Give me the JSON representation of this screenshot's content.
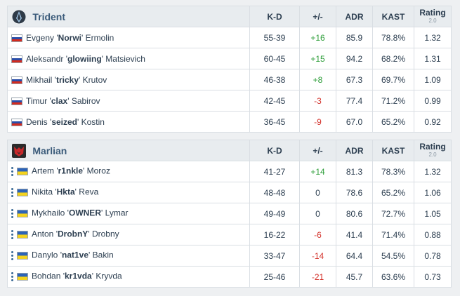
{
  "headers": {
    "kd": "K-D",
    "pm": "+/-",
    "adr": "ADR",
    "kast": "KAST",
    "rating": "Rating",
    "rating_ver": "2.0"
  },
  "teams": [
    {
      "name": "Trident",
      "logo": "trident-logo",
      "players": [
        {
          "flag": "russia",
          "first": "Evgeny '",
          "nick": "Norwi",
          "last": "' Ermolin",
          "kd": "55-39",
          "pm": "+16",
          "adr": "85.9",
          "kast": "78.8%",
          "rating": "1.32"
        },
        {
          "flag": "russia",
          "first": "Aleksandr '",
          "nick": "glowiing",
          "last": "' Matsievich",
          "kd": "60-45",
          "pm": "+15",
          "adr": "94.2",
          "kast": "68.2%",
          "rating": "1.31"
        },
        {
          "flag": "russia",
          "first": "Mikhail '",
          "nick": "tricky",
          "last": "' Krutov",
          "kd": "46-38",
          "pm": "+8",
          "adr": "67.3",
          "kast": "69.7%",
          "rating": "1.09"
        },
        {
          "flag": "russia",
          "first": "Timur '",
          "nick": "clax",
          "last": "' Sabirov",
          "kd": "42-45",
          "pm": "-3",
          "adr": "77.4",
          "kast": "71.2%",
          "rating": "0.99"
        },
        {
          "flag": "russia",
          "first": "Denis '",
          "nick": "seized",
          "last": "' Kostin",
          "kd": "36-45",
          "pm": "-9",
          "adr": "67.0",
          "kast": "65.2%",
          "rating": "0.92"
        }
      ]
    },
    {
      "name": "Marlian",
      "logo": "marlian-logo",
      "players": [
        {
          "flag": "ukraine",
          "first": "Artem '",
          "nick": "r1nkle",
          "last": "' Moroz",
          "kd": "41-27",
          "pm": "+14",
          "adr": "81.3",
          "kast": "78.3%",
          "rating": "1.32"
        },
        {
          "flag": "ukraine",
          "first": "Nikita '",
          "nick": "Hkta",
          "last": "' Reva",
          "kd": "48-48",
          "pm": "0",
          "adr": "78.6",
          "kast": "65.2%",
          "rating": "1.06"
        },
        {
          "flag": "ukraine",
          "first": "Mykhailo '",
          "nick": "OWNER",
          "last": "' Lymar",
          "kd": "49-49",
          "pm": "0",
          "adr": "80.6",
          "kast": "72.7%",
          "rating": "1.05"
        },
        {
          "flag": "ukraine",
          "first": "Anton '",
          "nick": "DrobnY",
          "last": "' Drobny",
          "kd": "16-22",
          "pm": "-6",
          "adr": "41.4",
          "kast": "71.4%",
          "rating": "0.88"
        },
        {
          "flag": "ukraine",
          "first": "Danylo '",
          "nick": "nat1ve",
          "last": "' Bakin",
          "kd": "33-47",
          "pm": "-14",
          "adr": "64.4",
          "kast": "54.5%",
          "rating": "0.78"
        },
        {
          "flag": "ukraine",
          "first": "Bohdan '",
          "nick": "kr1vda",
          "last": "' Kryvda",
          "kd": "25-46",
          "pm": "-21",
          "adr": "45.7",
          "kast": "63.6%",
          "rating": "0.73"
        }
      ]
    }
  ],
  "colors": {
    "positive": "#2e9e3a",
    "negative": "#d3312a",
    "team_name": "#3b5b7a",
    "header_bg": "#e8ecef"
  }
}
